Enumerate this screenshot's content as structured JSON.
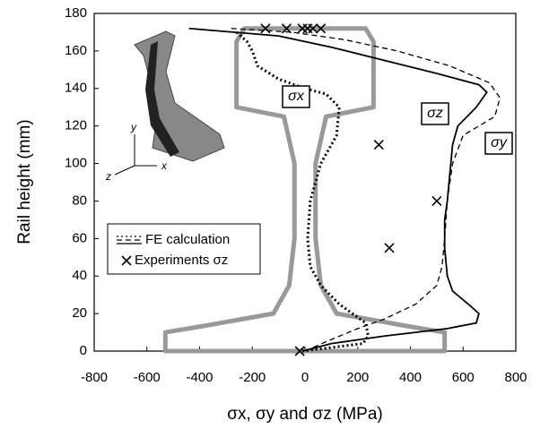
{
  "chart_data": {
    "type": "line",
    "xlabel": "σx, σy and σz (MPa)",
    "ylabel": "Rail height (mm)",
    "xlim": [
      -800,
      800
    ],
    "xticks": [
      -800,
      -600,
      -400,
      -200,
      0,
      200,
      400,
      600,
      800
    ],
    "ylim": [
      0,
      180
    ],
    "yticks": [
      0,
      20,
      40,
      60,
      80,
      100,
      120,
      140,
      160,
      180
    ],
    "legend_lines": "FE calculation",
    "series": [
      {
        "name": "σx",
        "color": "#000000",
        "dash": "dot",
        "x": [
          -260,
          -220,
          -200,
          -180,
          -100,
          0,
          80,
          130,
          120,
          60,
          20,
          10,
          20,
          60,
          130,
          230,
          240,
          220,
          -10
        ],
        "y": [
          170,
          165,
          160,
          152,
          145,
          140,
          137,
          130,
          115,
          100,
          80,
          60,
          45,
          35,
          25,
          15,
          8,
          4,
          0
        ]
      },
      {
        "name": "σy",
        "color": "#000000",
        "dash": "dash",
        "x": [
          -280,
          -50,
          150,
          350,
          550,
          700,
          740,
          720,
          600,
          560,
          540,
          530,
          520,
          500,
          420,
          300,
          200,
          80,
          0
        ],
        "y": [
          172,
          170,
          166,
          160,
          152,
          143,
          135,
          125,
          115,
          100,
          80,
          60,
          45,
          35,
          25,
          17,
          12,
          5,
          0
        ]
      },
      {
        "name": "σz",
        "color": "#000000",
        "dash": "solid",
        "x": [
          -440,
          -100,
          100,
          300,
          500,
          660,
          690,
          650,
          580,
          560,
          550,
          540,
          530,
          530,
          540,
          560,
          620,
          660,
          650,
          540,
          300,
          100,
          -10
        ],
        "y": [
          172,
          168,
          162,
          155,
          148,
          142,
          138,
          130,
          120,
          110,
          95,
          80,
          70,
          55,
          40,
          32,
          25,
          20,
          15,
          12,
          8,
          4,
          0
        ]
      }
    ],
    "experiments": {
      "name": "Experiments σz",
      "color": "#000000",
      "x": [
        -150,
        -70,
        -10,
        10,
        30,
        60,
        280,
        500,
        320,
        -20
      ],
      "y": [
        172,
        172,
        172,
        172,
        172,
        172,
        110,
        80,
        55,
        0
      ]
    },
    "outline": {
      "color": "#999999",
      "x": [
        -530,
        530,
        530,
        400,
        120,
        60,
        40,
        40,
        80,
        260,
        260,
        230,
        -230,
        -260,
        -260,
        -80,
        -40,
        -40,
        -60,
        -120,
        -400,
        -530,
        -530
      ],
      "y": [
        0,
        0,
        10,
        13,
        20,
        35,
        60,
        100,
        125,
        130,
        165,
        172,
        172,
        165,
        130,
        125,
        100,
        60,
        35,
        20,
        13,
        10,
        0
      ]
    },
    "inset_axes": [
      "y",
      "z",
      "x"
    ]
  }
}
